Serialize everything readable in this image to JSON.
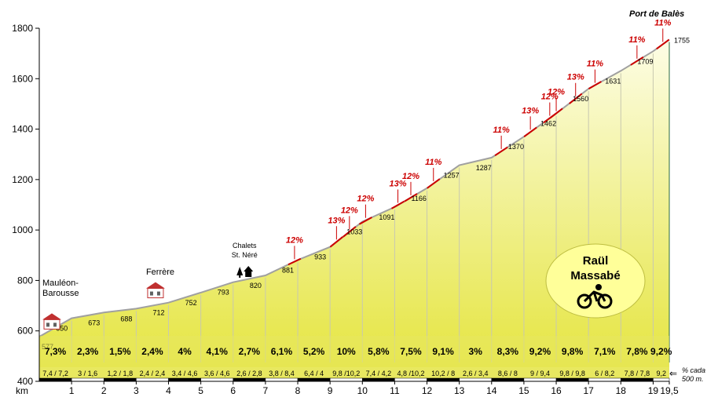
{
  "chart_data": {
    "type": "area",
    "title": "Port de Balès",
    "xlabel": "km",
    "ylabel": "",
    "xlim": [
      0,
      19.5
    ],
    "ylim": [
      400,
      1800
    ],
    "y_ticks": [
      "400",
      "600",
      "800",
      "1000",
      "1200",
      "1400",
      "1600",
      "1800"
    ],
    "x_ticks": [
      "1",
      "2",
      "3",
      "4",
      "5",
      "6",
      "7",
      "8",
      "9",
      "10",
      "11",
      "12",
      "13",
      "14",
      "15",
      "16",
      "17",
      "18",
      "19",
      "19,5"
    ],
    "grid": false,
    "km_altitudes": [
      {
        "x": 0,
        "alt": 577,
        "label": "577"
      },
      {
        "x": 1,
        "alt": 650,
        "label": "650"
      },
      {
        "x": 2,
        "alt": 673,
        "label": "673"
      },
      {
        "x": 3,
        "alt": 688,
        "label": "688"
      },
      {
        "x": 4,
        "alt": 712,
        "label": "712"
      },
      {
        "x": 5,
        "alt": 752,
        "label": "752"
      },
      {
        "x": 6,
        "alt": 793,
        "label": "793"
      },
      {
        "x": 7,
        "alt": 820,
        "label": "820"
      },
      {
        "x": 8,
        "alt": 881,
        "label": "881"
      },
      {
        "x": 9,
        "alt": 933,
        "label": "933"
      },
      {
        "x": 10,
        "alt": 1033,
        "label": "1033"
      },
      {
        "x": 11,
        "alt": 1091,
        "label": "1091"
      },
      {
        "x": 12,
        "alt": 1166,
        "label": "1166"
      },
      {
        "x": 13,
        "alt": 1257,
        "label": "1257"
      },
      {
        "x": 14,
        "alt": 1287,
        "label": "1287"
      },
      {
        "x": 15,
        "alt": 1370,
        "label": "1370"
      },
      {
        "x": 16,
        "alt": 1462,
        "label": "1462"
      },
      {
        "x": 17,
        "alt": 1560,
        "label": "1560"
      },
      {
        "x": 18,
        "alt": 1631,
        "label": "1631"
      },
      {
        "x": 19,
        "alt": 1709,
        "label": "1709"
      },
      {
        "x": 19.5,
        "alt": 1755,
        "label": "1755"
      }
    ],
    "segments": [
      {
        "grade": "7,3%",
        "detail": "7,4 / 7,2"
      },
      {
        "grade": "2,3%",
        "detail": "3 / 1,6"
      },
      {
        "grade": "1,5%",
        "detail": "1,2 / 1,8"
      },
      {
        "grade": "2,4%",
        "detail": "2,4 / 2,4"
      },
      {
        "grade": "4%",
        "detail": "3,4 / 4,6"
      },
      {
        "grade": "4,1%",
        "detail": "3,6 / 4,6"
      },
      {
        "grade": "2,7%",
        "detail": "2,6 / 2,8"
      },
      {
        "grade": "6,1%",
        "detail": "3,8 / 8,4"
      },
      {
        "grade": "5,2%",
        "detail": "6,4 / 4"
      },
      {
        "grade": "10%",
        "detail": "9,8 /10,2"
      },
      {
        "grade": "5,8%",
        "detail": "7,4 / 4,2"
      },
      {
        "grade": "7,5%",
        "detail": "4,8 /10,2"
      },
      {
        "grade": "9,1%",
        "detail": "10,2 / 8"
      },
      {
        "grade": "3%",
        "detail": "2,6 / 3,4"
      },
      {
        "grade": "8,3%",
        "detail": "8,6 / 8"
      },
      {
        "grade": "9,2%",
        "detail": "9 / 9,4"
      },
      {
        "grade": "9,8%",
        "detail": "9,8 / 9,8"
      },
      {
        "grade": "7,1%",
        "detail": "6 / 8,2"
      },
      {
        "grade": "7,8%",
        "detail": "7,8 / 7,8"
      },
      {
        "grade": "9,2%",
        "detail": "9,2"
      }
    ],
    "steep_markers": [
      {
        "label": "12%",
        "x": 7.9
      },
      {
        "label": "13%",
        "x": 9.2
      },
      {
        "label": "12%",
        "x": 9.6
      },
      {
        "label": "12%",
        "x": 10.1
      },
      {
        "label": "13%",
        "x": 11.1
      },
      {
        "label": "12%",
        "x": 11.5
      },
      {
        "label": "11%",
        "x": 12.2
      },
      {
        "label": "11%",
        "x": 14.3
      },
      {
        "label": "13%",
        "x": 15.2
      },
      {
        "label": "12%",
        "x": 15.8
      },
      {
        "label": "12%",
        "x": 16.0
      },
      {
        "label": "13%",
        "x": 16.6
      },
      {
        "label": "11%",
        "x": 17.2
      },
      {
        "label": "11%",
        "x": 18.5
      },
      {
        "label": "11%",
        "x": 19.3
      }
    ],
    "places": [
      {
        "name": "Mauléon-\nBarousse",
        "x": 0.2,
        "kind": "village"
      },
      {
        "name": "Ferrère",
        "x": 3.5,
        "kind": "village"
      },
      {
        "name": "Chalets\nSt. Néré",
        "x": 6.4,
        "kind": "chalets"
      }
    ],
    "summit": "Port de Balès",
    "legend": {
      "arrow": "⇐",
      "text": "% cada\n500 m."
    },
    "author": {
      "line1": "Raül",
      "line2": "Massabé"
    },
    "colors": {
      "fill_top": "#fdfde6",
      "fill_bottom": "#e4e43a",
      "outline": "#a0a0a0",
      "steep": "#cc0000",
      "strip": "#e8e860",
      "badge": "#ffff99"
    }
  }
}
